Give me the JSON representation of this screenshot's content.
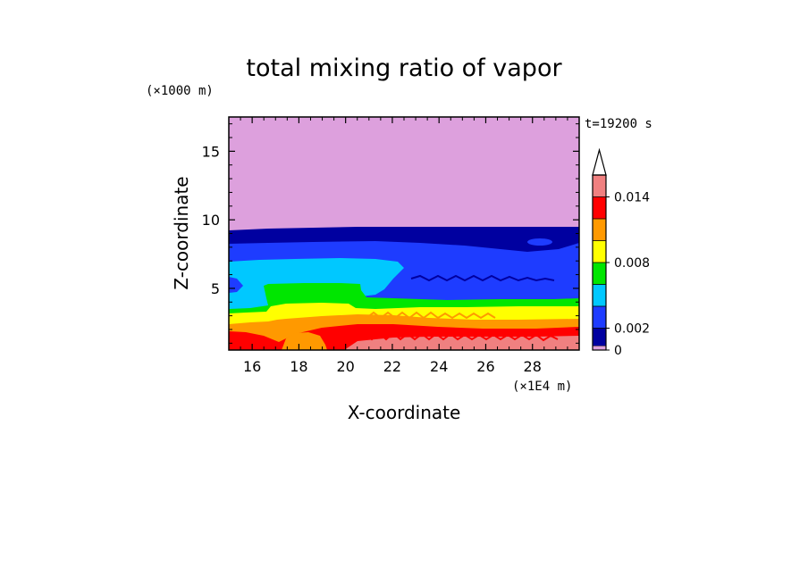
{
  "chart_data": {
    "type": "heatmap",
    "title": "total mixing ratio of vapor",
    "xlabel": "X-coordinate",
    "ylabel": "Z-coordinate",
    "x_unit": "(×1E4 m)",
    "y_unit": "(×1000 m)",
    "time_label": "t=19200 s",
    "xlim": [
      15,
      30
    ],
    "ylim": [
      0.5,
      17.5
    ],
    "x_ticks": [
      16,
      18,
      20,
      22,
      24,
      26,
      28
    ],
    "y_ticks": [
      5,
      10,
      15
    ],
    "colorbar": {
      "levels": [
        0,
        0.002,
        0.004,
        0.006,
        0.008,
        0.01,
        0.012,
        0.014,
        0.016
      ],
      "tick_labels": [
        "0",
        "0.002",
        "0.008",
        "0.014"
      ],
      "tick_values": [
        0,
        0.002,
        0.008,
        0.014
      ],
      "colors": [
        "#0000a0",
        "#1e3cff",
        "#00c8ff",
        "#00e600",
        "#ffff00",
        "#ff9900",
        "#ff0000",
        "#f08080",
        "#ffc0cb"
      ],
      "background_color": "#dda0dd",
      "extend": "max"
    },
    "bands": [
      {
        "name": "upper",
        "value_range": "<0.0001",
        "color": "#dda0dd",
        "z_bottom": 9.5,
        "z_top": 17.5
      },
      {
        "name": "band1",
        "color": "#0000a0",
        "z_bottom": 8.3,
        "z_top": 9.5
      },
      {
        "name": "band2",
        "color": "#1e3cff",
        "z_bottom": 4.2,
        "z_top": 8.3
      },
      {
        "name": "band3",
        "color": "#00c8ff",
        "z_bottom": 3.0,
        "z_top": 7.0
      },
      {
        "name": "band4",
        "color": "#00e600",
        "z_bottom": 2.8,
        "z_top": 5.0
      },
      {
        "name": "band5",
        "color": "#ffff00",
        "z_bottom": 1.9,
        "z_top": 3.8
      },
      {
        "name": "band6",
        "color": "#ff9900",
        "z_bottom": 1.0,
        "z_top": 2.6
      },
      {
        "name": "band7",
        "color": "#ff0000",
        "z_bottom": 0.5,
        "z_top": 1.8
      },
      {
        "name": "band8",
        "color": "#f08080",
        "z_bottom": 0.5,
        "z_top": 1.2
      }
    ]
  }
}
